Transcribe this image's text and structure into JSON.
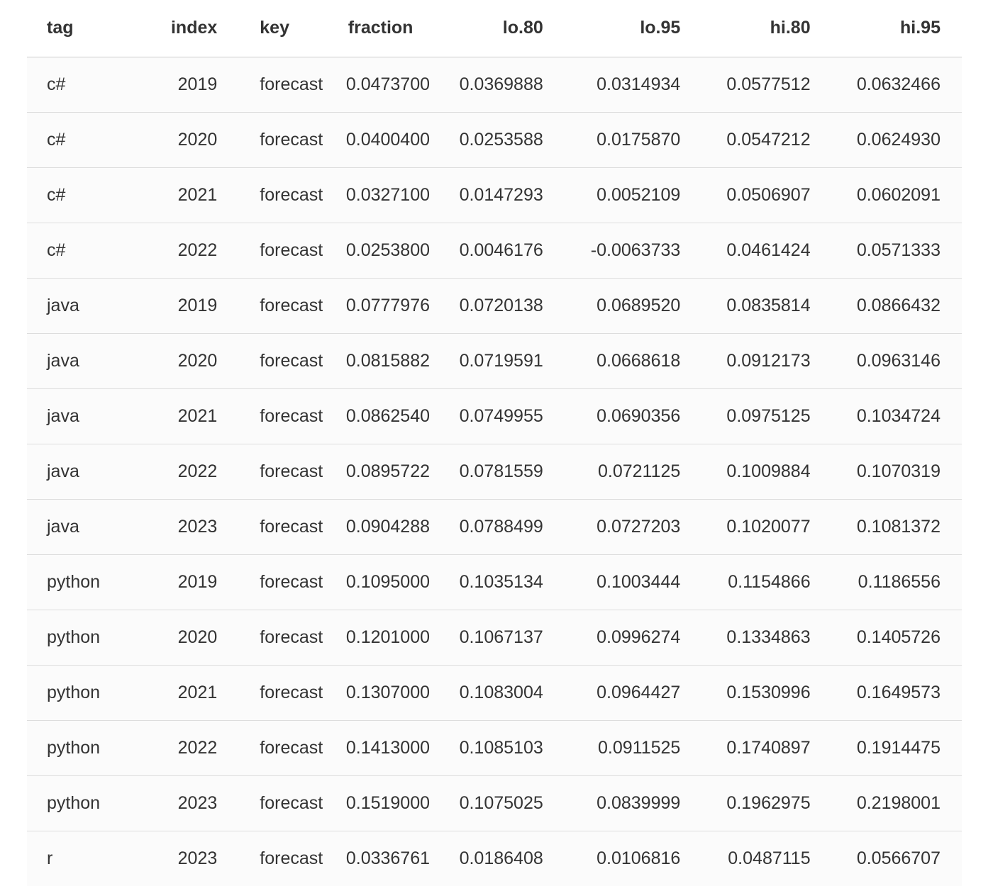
{
  "table": {
    "columns": [
      {
        "key": "tag",
        "label": "tag",
        "align": "left"
      },
      {
        "key": "index",
        "label": "index",
        "align": "right"
      },
      {
        "key": "key",
        "label": "key",
        "align": "left"
      },
      {
        "key": "fraction",
        "label": "fraction",
        "align": "right"
      },
      {
        "key": "lo80",
        "label": "lo.80",
        "align": "right"
      },
      {
        "key": "lo95",
        "label": "lo.95",
        "align": "right"
      },
      {
        "key": "hi80",
        "label": "hi.80",
        "align": "right"
      },
      {
        "key": "hi95",
        "label": "hi.95",
        "align": "right"
      }
    ],
    "rows": [
      [
        "c#",
        "2019",
        "forecast",
        "0.0473700",
        "0.0369888",
        "0.0314934",
        "0.0577512",
        "0.0632466"
      ],
      [
        "c#",
        "2020",
        "forecast",
        "0.0400400",
        "0.0253588",
        "0.0175870",
        "0.0547212",
        "0.0624930"
      ],
      [
        "c#",
        "2021",
        "forecast",
        "0.0327100",
        "0.0147293",
        "0.0052109",
        "0.0506907",
        "0.0602091"
      ],
      [
        "c#",
        "2022",
        "forecast",
        "0.0253800",
        "0.0046176",
        "-0.0063733",
        "0.0461424",
        "0.0571333"
      ],
      [
        "java",
        "2019",
        "forecast",
        "0.0777976",
        "0.0720138",
        "0.0689520",
        "0.0835814",
        "0.0866432"
      ],
      [
        "java",
        "2020",
        "forecast",
        "0.0815882",
        "0.0719591",
        "0.0668618",
        "0.0912173",
        "0.0963146"
      ],
      [
        "java",
        "2021",
        "forecast",
        "0.0862540",
        "0.0749955",
        "0.0690356",
        "0.0975125",
        "0.1034724"
      ],
      [
        "java",
        "2022",
        "forecast",
        "0.0895722",
        "0.0781559",
        "0.0721125",
        "0.1009884",
        "0.1070319"
      ],
      [
        "java",
        "2023",
        "forecast",
        "0.0904288",
        "0.0788499",
        "0.0727203",
        "0.1020077",
        "0.1081372"
      ],
      [
        "python",
        "2019",
        "forecast",
        "0.1095000",
        "0.1035134",
        "0.1003444",
        "0.1154866",
        "0.1186556"
      ],
      [
        "python",
        "2020",
        "forecast",
        "0.1201000",
        "0.1067137",
        "0.0996274",
        "0.1334863",
        "0.1405726"
      ],
      [
        "python",
        "2021",
        "forecast",
        "0.1307000",
        "0.1083004",
        "0.0964427",
        "0.1530996",
        "0.1649573"
      ],
      [
        "python",
        "2022",
        "forecast",
        "0.1413000",
        "0.1085103",
        "0.0911525",
        "0.1740897",
        "0.1914475"
      ],
      [
        "python",
        "2023",
        "forecast",
        "0.1519000",
        "0.1075025",
        "0.0839999",
        "0.1962975",
        "0.2198001"
      ],
      [
        "r",
        "2023",
        "forecast",
        "0.0336761",
        "0.0186408",
        "0.0106816",
        "0.0487115",
        "0.0566707"
      ]
    ]
  }
}
